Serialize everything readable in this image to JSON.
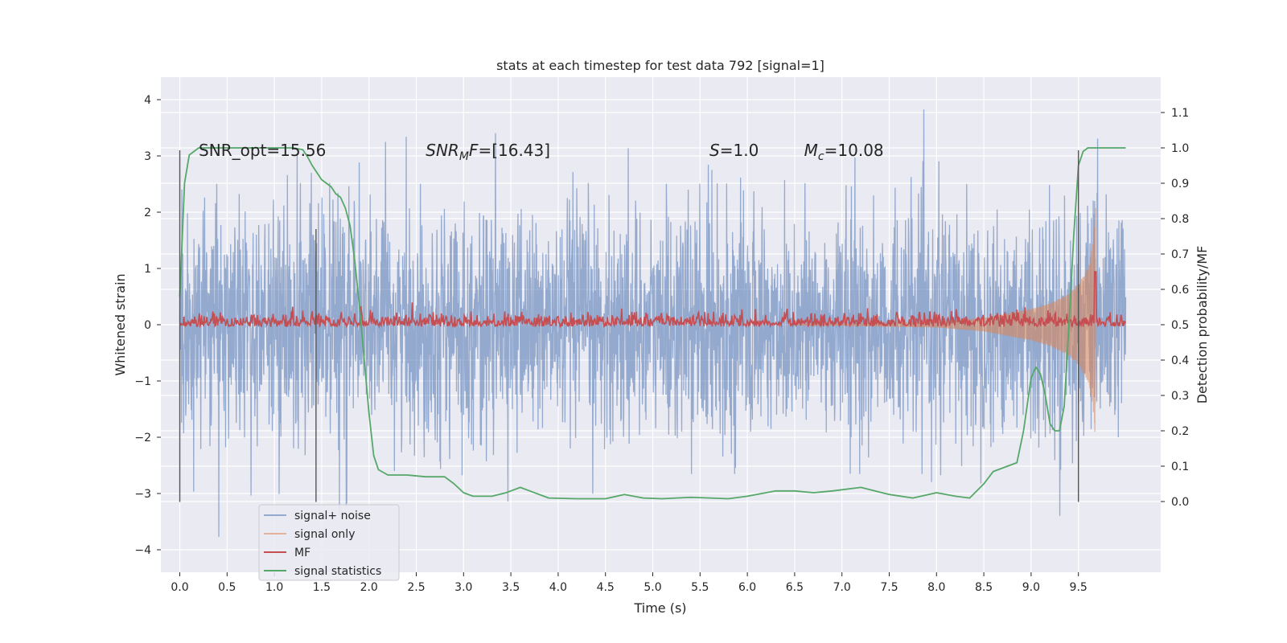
{
  "chart_data": {
    "type": "line",
    "title": "stats at each timestep for test data 792 [signal=1]",
    "xlabel": "Time (s)",
    "ylabel": "Whitened strain",
    "y2label": "Detection probability/MF",
    "xlim": [
      -0.2,
      10.37
    ],
    "ylim": [
      -4.4,
      4.4
    ],
    "y2lim": [
      -0.2,
      1.2
    ],
    "x_ticks": [
      0.0,
      0.5,
      1.0,
      1.5,
      2.0,
      2.5,
      3.0,
      3.5,
      4.0,
      4.5,
      5.0,
      5.5,
      6.0,
      6.5,
      7.0,
      7.5,
      8.0,
      8.5,
      9.0,
      9.5
    ],
    "x_tick_labels": [
      "0.0",
      "0.5",
      "1.0",
      "1.5",
      "2.0",
      "2.5",
      "3.0",
      "3.5",
      "4.0",
      "4.5",
      "5.0",
      "5.5",
      "6.0",
      "6.5",
      "7.0",
      "7.5",
      "8.0",
      "8.5",
      "9.0",
      "9.5"
    ],
    "y_ticks": [
      4,
      3,
      2,
      1,
      0,
      -1,
      -2,
      -3,
      -4
    ],
    "y_tick_labels": [
      "4",
      "3",
      "2",
      "1",
      "0",
      "−1",
      "−2",
      "−3",
      "−4"
    ],
    "y2_ticks": [
      1.1,
      1.0,
      0.9,
      0.8,
      0.7,
      0.6,
      0.5,
      0.4,
      0.3,
      0.2,
      0.1,
      0.0
    ],
    "y2_tick_labels": [
      "1.1",
      "1.0",
      "0.9",
      "0.8",
      "0.7",
      "0.6",
      "0.5",
      "0.4",
      "0.3",
      "0.2",
      "0.1",
      "0.0"
    ],
    "grid": true,
    "legend_position": "lower-left",
    "annotations": [
      {
        "text": "SNR_opt=15.56",
        "x": 0.2,
        "y": 3.1
      },
      {
        "text": "SNR_MF=[16.43]",
        "x": 2.6,
        "y": 3.1
      },
      {
        "text": "S=1.0",
        "x": 5.6,
        "y": 3.1
      },
      {
        "text": "M_c=10.08",
        "x": 6.6,
        "y": 3.1
      }
    ],
    "vertical_markers": [
      {
        "x": 0.0,
        "y_range": [
          -3.15,
          3.1
        ]
      },
      {
        "x": 1.44,
        "y_range": [
          -3.15,
          1.7
        ]
      },
      {
        "x": 9.5,
        "y_range": [
          -3.15,
          3.1
        ]
      }
    ],
    "series": [
      {
        "name": "signal+ noise",
        "color": "#4c72b0",
        "axis": "left",
        "description_range": {
          "x": [
            0.0,
            10.0
          ],
          "envelope": [
            -4.0,
            4.0
          ],
          "dense_band": [
            -1.3,
            1.3
          ]
        }
      },
      {
        "name": "signal only",
        "color": "#dd8452",
        "axis": "left",
        "envelope": {
          "x": [
            8.0,
            8.5,
            9.0,
            9.2,
            9.4,
            9.5,
            9.6,
            9.65,
            9.68
          ],
          "amp": [
            0.05,
            0.12,
            0.28,
            0.38,
            0.55,
            0.72,
            1.0,
            1.4,
            2.1
          ]
        }
      },
      {
        "name": "MF",
        "color": "#c44e52",
        "axis": "right",
        "baseline": 0.5,
        "noise": 0.02,
        "peak": {
          "x": 9.68,
          "y": 0.65
        }
      },
      {
        "name": "signal statistics",
        "color": "#55a868",
        "axis": "right",
        "x": [
          0.0,
          0.05,
          0.1,
          0.15,
          0.2,
          0.3,
          0.5,
          0.8,
          1.1,
          1.2,
          1.3,
          1.35,
          1.4,
          1.5,
          1.6,
          1.65,
          1.7,
          1.75,
          1.8,
          1.85,
          1.9,
          1.95,
          2.0,
          2.05,
          2.1,
          2.2,
          2.4,
          2.6,
          2.8,
          2.9,
          3.0,
          3.1,
          3.3,
          3.45,
          3.6,
          3.7,
          3.9,
          4.2,
          4.5,
          4.7,
          4.9,
          5.1,
          5.4,
          5.8,
          6.0,
          6.3,
          6.5,
          6.7,
          6.9,
          7.2,
          7.5,
          7.75,
          8.0,
          8.2,
          8.35,
          8.5,
          8.6,
          8.75,
          8.85,
          8.92,
          9.0,
          9.05,
          9.1,
          9.15,
          9.2,
          9.25,
          9.3,
          9.35,
          9.4,
          9.45,
          9.5,
          9.55,
          9.6,
          9.7,
          9.85,
          10.0
        ],
        "y": [
          0.58,
          0.9,
          0.98,
          0.99,
          1.0,
          1.0,
          1.0,
          1.0,
          1.0,
          1.0,
          0.995,
          0.975,
          0.95,
          0.91,
          0.89,
          0.87,
          0.86,
          0.83,
          0.78,
          0.68,
          0.55,
          0.4,
          0.25,
          0.13,
          0.09,
          0.075,
          0.075,
          0.07,
          0.07,
          0.05,
          0.025,
          0.015,
          0.015,
          0.025,
          0.04,
          0.03,
          0.01,
          0.008,
          0.008,
          0.02,
          0.01,
          0.008,
          0.012,
          0.008,
          0.015,
          0.03,
          0.03,
          0.025,
          0.03,
          0.04,
          0.02,
          0.01,
          0.025,
          0.015,
          0.01,
          0.05,
          0.085,
          0.1,
          0.11,
          0.2,
          0.35,
          0.38,
          0.36,
          0.3,
          0.22,
          0.2,
          0.2,
          0.27,
          0.5,
          0.75,
          0.95,
          0.99,
          1.0,
          1.0,
          1.0,
          1.0
        ]
      }
    ],
    "legend": [
      "signal+ noise",
      "signal only",
      "MF",
      "signal statistics"
    ]
  }
}
